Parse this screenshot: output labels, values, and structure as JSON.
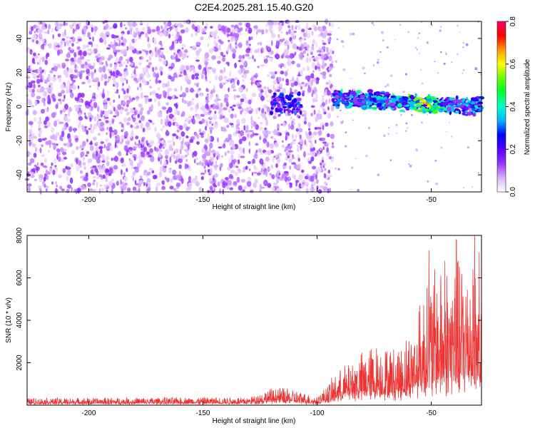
{
  "figure": {
    "title": "C2E4.2025.281.15.40.G20"
  },
  "chart_data": [
    {
      "type": "heatmap",
      "title": "C2E4.2025.281.15.40.G20",
      "xlabel": "Height of straight line (km)",
      "ylabel": "Frequency (Hz)",
      "xlim": [
        -227,
        -28
      ],
      "ylim": [
        -50,
        50
      ],
      "x_ticks": [
        -200,
        -150,
        -100,
        -50
      ],
      "y_ticks": [
        -40,
        -20,
        0,
        20,
        40
      ],
      "colorbar": {
        "label": "Normalized spectral amplitude",
        "range": [
          0,
          0.8
        ],
        "ticks": [
          0.0,
          0.2,
          0.4,
          0.6,
          0.8
        ],
        "colors": [
          "#ffffff",
          "#d9b3ff",
          "#9933ff",
          "#5500ff",
          "#0000ff",
          "#00b3ff",
          "#00ffcc",
          "#00ff33",
          "#66ff00",
          "#ffff00",
          "#ff9900",
          "#ff0000",
          "#ff0066"
        ]
      },
      "regions": [
        {
          "name": "noise",
          "x_range": [
            -227,
            -93
          ],
          "freq_range": [
            -50,
            50
          ],
          "amplitude_range": [
            0.0,
            0.2
          ]
        },
        {
          "name": "signal-onset",
          "x_range": [
            -120,
            -107
          ],
          "freq_center": 2,
          "freq_halfwidth": 6
        },
        {
          "name": "signal",
          "x_range": [
            -93,
            -28
          ],
          "freq_center_start": 5,
          "freq_center_end": 0,
          "freq_halfwidth": 5,
          "peak_amplitude": 0.8,
          "peak_x": -53
        }
      ]
    },
    {
      "type": "line",
      "xlabel": "Height of straight line (km)",
      "ylabel": "SNR (10 * v/v)",
      "xlim": [
        -227,
        -28
      ],
      "ylim": [
        0,
        8000
      ],
      "x_ticks": [
        -200,
        -150,
        -100,
        -50
      ],
      "y_ticks": [
        2000,
        4000,
        6000,
        8000
      ],
      "series": [
        {
          "name": "SNR",
          "color": "#ee3333",
          "envelope": [
            {
              "x": -227,
              "base": 80,
              "peak": 350
            },
            {
              "x": -130,
              "base": 100,
              "peak": 400
            },
            {
              "x": -118,
              "base": 200,
              "peak": 900
            },
            {
              "x": -108,
              "base": 150,
              "peak": 700
            },
            {
              "x": -100,
              "base": 100,
              "peak": 400
            },
            {
              "x": -92,
              "base": 300,
              "peak": 1500
            },
            {
              "x": -85,
              "base": 500,
              "peak": 2200
            },
            {
              "x": -75,
              "base": 600,
              "peak": 3000
            },
            {
              "x": -65,
              "base": 600,
              "peak": 2800
            },
            {
              "x": -58,
              "base": 800,
              "peak": 3800
            },
            {
              "x": -52,
              "base": 1000,
              "peak": 6300
            },
            {
              "x": -45,
              "base": 1200,
              "peak": 6900
            },
            {
              "x": -38,
              "base": 1200,
              "peak": 7200
            },
            {
              "x": -32,
              "base": 1500,
              "peak": 7800
            },
            {
              "x": -28,
              "base": 1200,
              "peak": 5000
            }
          ],
          "spikes": [
            {
              "x": -55,
              "y": 4700
            },
            {
              "x": -51,
              "y": 7300
            },
            {
              "x": -44,
              "y": 6800
            },
            {
              "x": -39,
              "y": 7800
            },
            {
              "x": -31,
              "y": 8000
            },
            {
              "x": -29,
              "y": 7200
            }
          ]
        }
      ]
    }
  ]
}
